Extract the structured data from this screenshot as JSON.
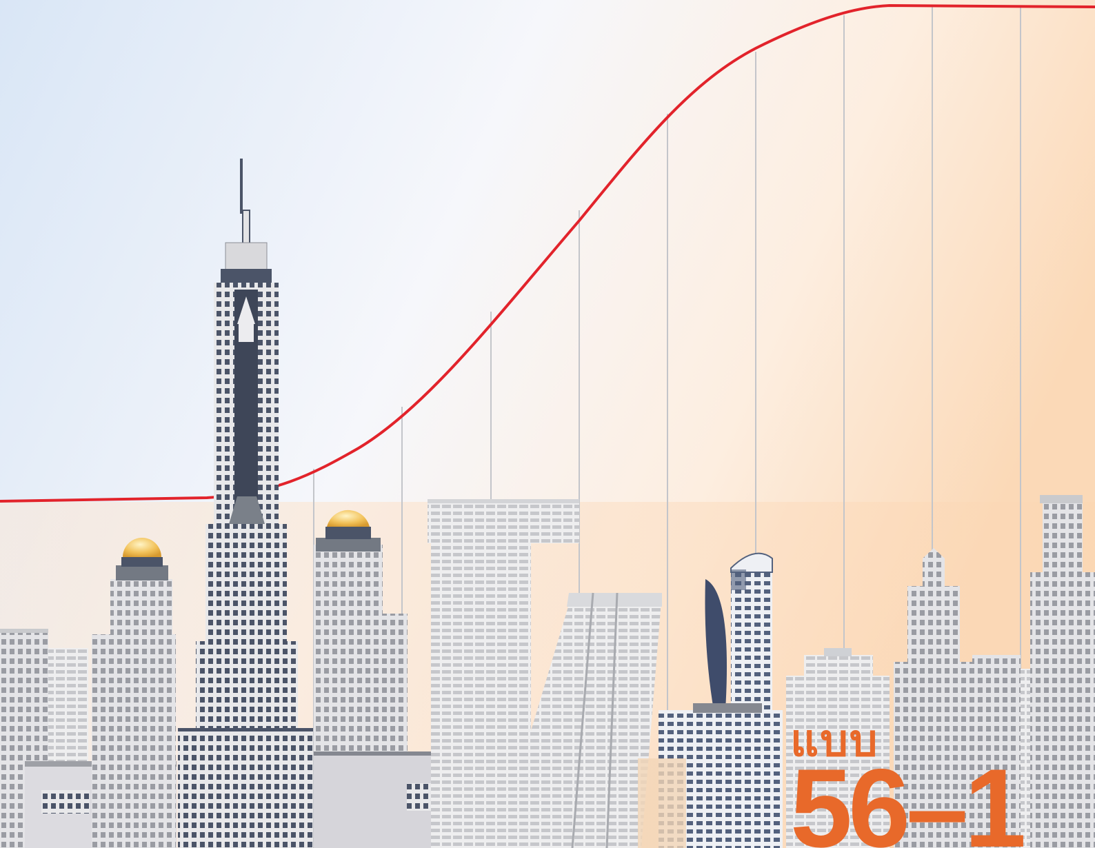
{
  "cover": {
    "form_word": "แบบ",
    "form_number": "56–1"
  },
  "colors": {
    "sky_left": "#dde9f7",
    "sky_right": "#fde6cf",
    "curve": "#e2232b",
    "label_orange": "#e8692a",
    "building_light": "#e3e3e6",
    "building_mid": "#c7c8cc",
    "building_dark": "#4b5468",
    "dome_gold": "#f3c65a"
  },
  "icons": {
    "curve": "growth-curve-icon",
    "skyline": "city-skyline-icon"
  }
}
